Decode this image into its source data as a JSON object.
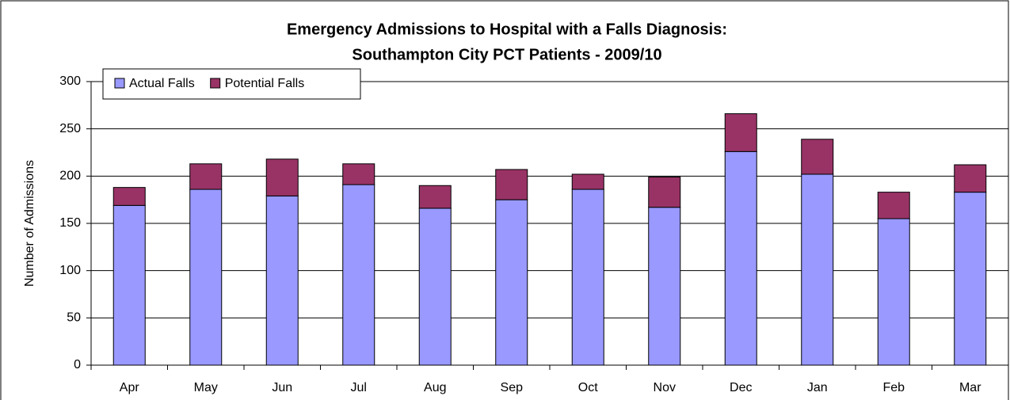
{
  "chart_data": {
    "type": "stacked_bar",
    "title": [
      "Emergency Admissions to Hospital with a Falls Diagnosis:",
      "Southampton City PCT Patients - 2009/10"
    ],
    "y_label": "Number of Admissions",
    "categories": [
      "Apr",
      "May",
      "Jun",
      "Jul",
      "Aug",
      "Sep",
      "Oct",
      "Nov",
      "Dec",
      "Jan",
      "Feb",
      "Mar"
    ],
    "series": [
      {
        "name": "Actual Falls",
        "color": "#9999ff",
        "values": [
          169,
          186,
          179,
          191,
          166,
          175,
          186,
          167,
          226,
          202,
          155,
          183
        ]
      },
      {
        "name": "Potential Falls",
        "color": "#993366",
        "values": [
          19,
          27,
          39,
          22,
          24,
          32,
          16,
          32,
          40,
          37,
          28,
          29
        ]
      }
    ],
    "ylim": [
      0,
      300
    ],
    "yticks": [
      0,
      50,
      100,
      150,
      200,
      250,
      300
    ],
    "grid": true,
    "legend": "top-left"
  }
}
